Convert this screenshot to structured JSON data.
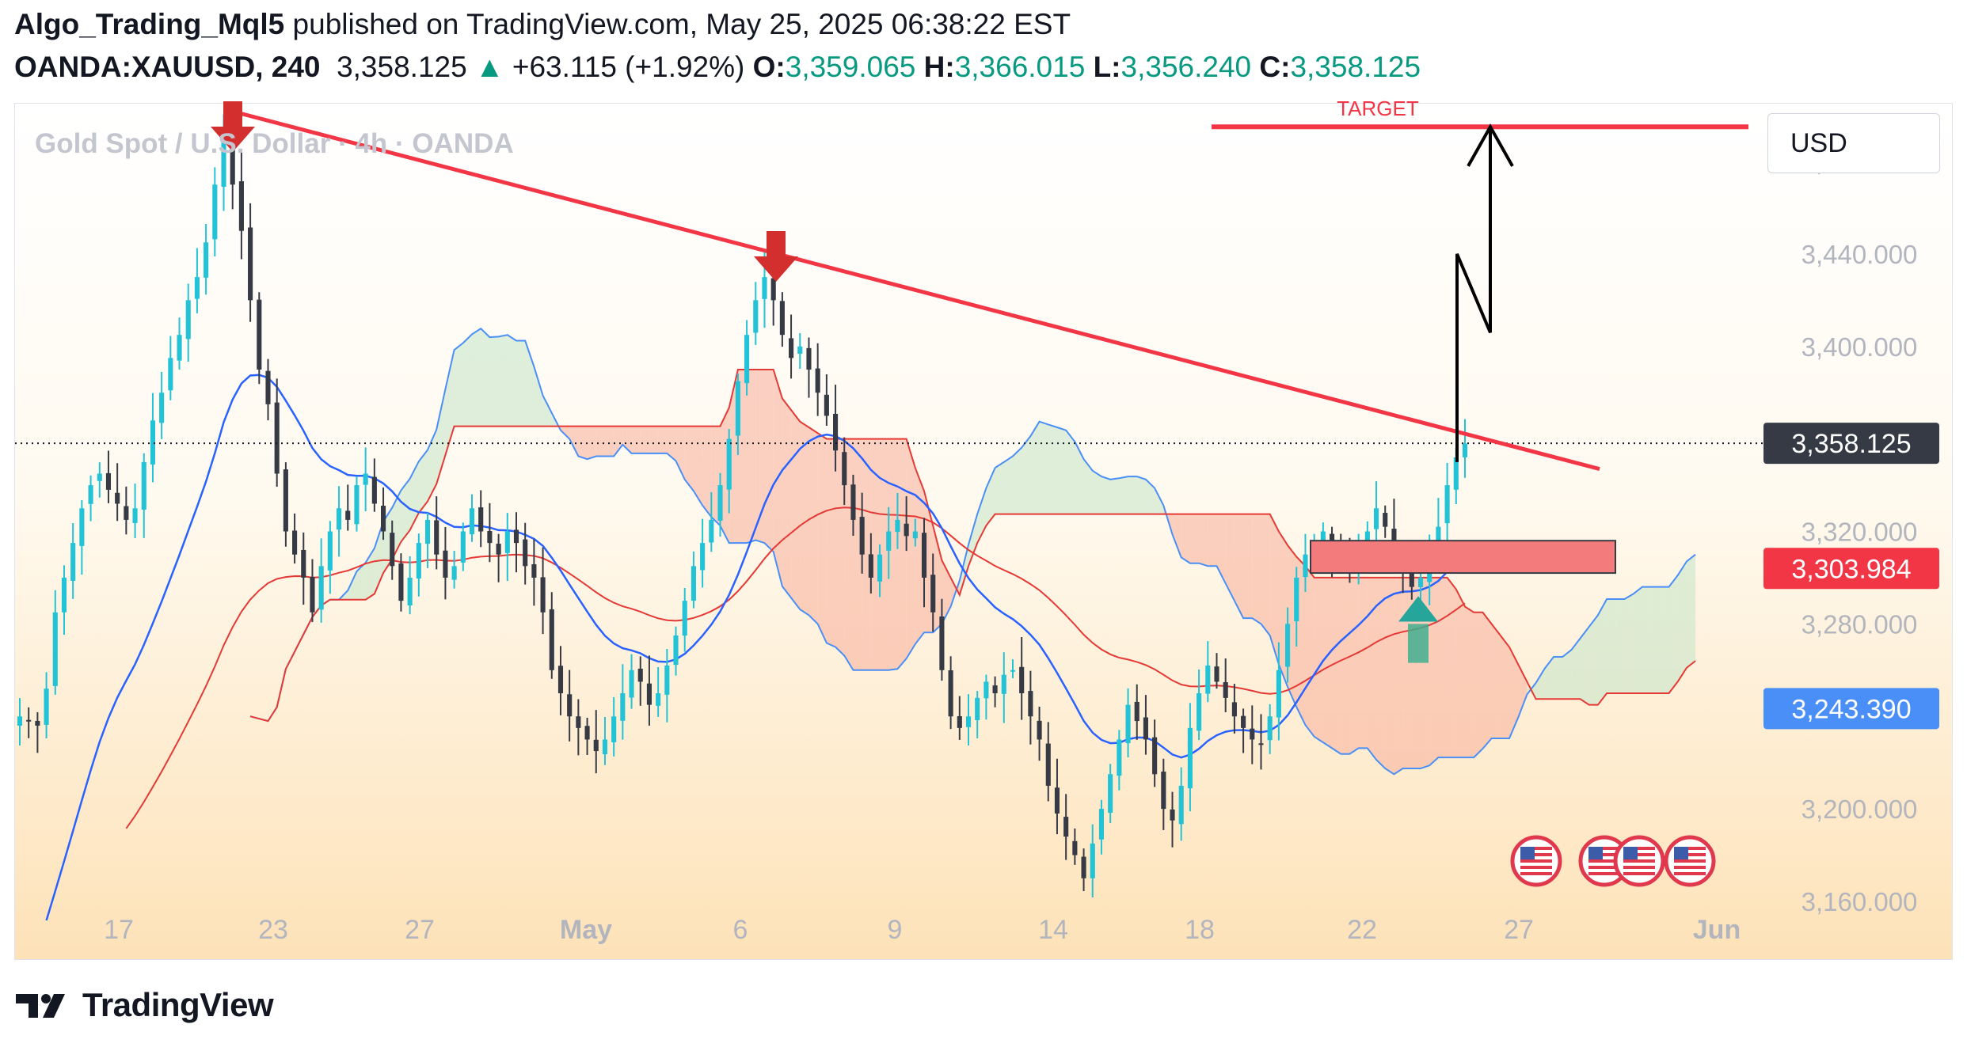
{
  "header": {
    "author": "Algo_Trading_Mql5",
    "published_text": "published on TradingView.com, May 25, 2025 06:38:22 EST",
    "symbol": "OANDA:XAUUSD, 240",
    "last_price": "3,358.125",
    "change": "+63.115 (+1.92%)",
    "o_label": "O:",
    "o_value": "3,359.065",
    "h_label": "H:",
    "h_value": "3,366.015",
    "l_label": "L:",
    "l_value": "3,356.240",
    "c_label": "C:",
    "c_value": "3,358.125"
  },
  "chart": {
    "watermark": "Gold Spot / U.S. Dollar · 4h · OANDA",
    "currency_button": "USD",
    "target_label": "TARGET",
    "price_labels": {
      "current": "3,358.125",
      "red": "3,303.984",
      "blue": "3,243.390"
    },
    "colors": {
      "up_candle": "#22c3d6",
      "down_candle": "#363a45",
      "trendline": "#f23645",
      "ma_blue": "#2962ff",
      "ma_red": "#e53935",
      "cloud_green": "#c8e6c9",
      "cloud_red": "#f8b4a0",
      "current_label_bg": "#363a45",
      "red_label_bg": "#f23645",
      "blue_label_bg": "#4a8ff7",
      "up_arrow": "#26a69a"
    },
    "icons": [
      "arrow-down-icon",
      "arrow-down-icon",
      "arrow-up-icon",
      "us-flag-icon",
      "us-flag-icon",
      "us-flag-icon",
      "us-flag-icon"
    ]
  },
  "footer": {
    "brand": "TradingView",
    "logo_icon": "tradingview-logo-icon"
  },
  "chart_data": {
    "type": "candlestick",
    "title": "Gold Spot / U.S. Dollar · 4h · OANDA",
    "symbol": "OANDA:XAUUSD",
    "timeframe": "240",
    "y_axis": {
      "ticks": [
        "3,480.000",
        "3,440.000",
        "3,400.000",
        "3,320.000",
        "3,280.000",
        "3,200.000",
        "3,160.000"
      ],
      "tick_values": [
        3480,
        3440,
        3400,
        3320,
        3280,
        3200,
        3160
      ],
      "range": [
        3135,
        3505
      ]
    },
    "x_axis": {
      "ticks": [
        "17",
        "23",
        "27",
        "May",
        "6",
        "9",
        "14",
        "18",
        "22",
        "27",
        "Jun"
      ],
      "bold_ticks": [
        "May",
        "Jun"
      ]
    },
    "current_price": 3358.125,
    "levels": {
      "red_label": 3303.984,
      "blue_label": 3243.39
    },
    "trendline": {
      "start": {
        "date": "Apr 22",
        "price": 3500
      },
      "end": {
        "date": "May 27",
        "price": 3347
      }
    },
    "target": {
      "label": "TARGET",
      "price": 3495
    },
    "zone": {
      "from": 3302,
      "to": 3316
    },
    "close_path": [
      3240,
      3238,
      3236,
      3252,
      3285,
      3300,
      3315,
      3330,
      3340,
      3345,
      3338,
      3332,
      3325,
      3330,
      3350,
      3368,
      3380,
      3395,
      3405,
      3420,
      3430,
      3445,
      3470,
      3495,
      3470,
      3450,
      3420,
      3390,
      3375,
      3345,
      3320,
      3310,
      3300,
      3285,
      3305,
      3320,
      3330,
      3325,
      3340,
      3345,
      3332,
      3320,
      3305,
      3290,
      3300,
      3315,
      3325,
      3310,
      3300,
      3305,
      3320,
      3330,
      3320,
      3315,
      3310,
      3320,
      3315,
      3305,
      3300,
      3285,
      3260,
      3250,
      3240,
      3235,
      3230,
      3225,
      3230,
      3240,
      3250,
      3260,
      3255,
      3245,
      3250,
      3262,
      3275,
      3290,
      3305,
      3315,
      3325,
      3340,
      3360,
      3385,
      3405,
      3420,
      3430,
      3420,
      3405,
      3395,
      3400,
      3390,
      3380,
      3370,
      3355,
      3340,
      3325,
      3310,
      3300,
      3310,
      3320,
      3325,
      3318,
      3320,
      3300,
      3285,
      3260,
      3240,
      3235,
      3240,
      3248,
      3255,
      3250,
      3258,
      3260,
      3250,
      3240,
      3230,
      3210,
      3198,
      3188,
      3180,
      3170,
      3185,
      3200,
      3215,
      3230,
      3245,
      3238,
      3230,
      3215,
      3200,
      3195,
      3210,
      3235,
      3250,
      3262,
      3255,
      3248,
      3240,
      3235,
      3230,
      3228,
      3240,
      3260,
      3280,
      3300,
      3310,
      3315,
      3320,
      3313,
      3310,
      3308,
      3312,
      3320,
      3330,
      3322,
      3312,
      3302,
      3296,
      3300,
      3310,
      3322,
      3340,
      3352,
      3358
    ],
    "indicators": [
      "Ichimoku Cloud",
      "Moving Average (blue)",
      "Moving Average (red)"
    ]
  }
}
